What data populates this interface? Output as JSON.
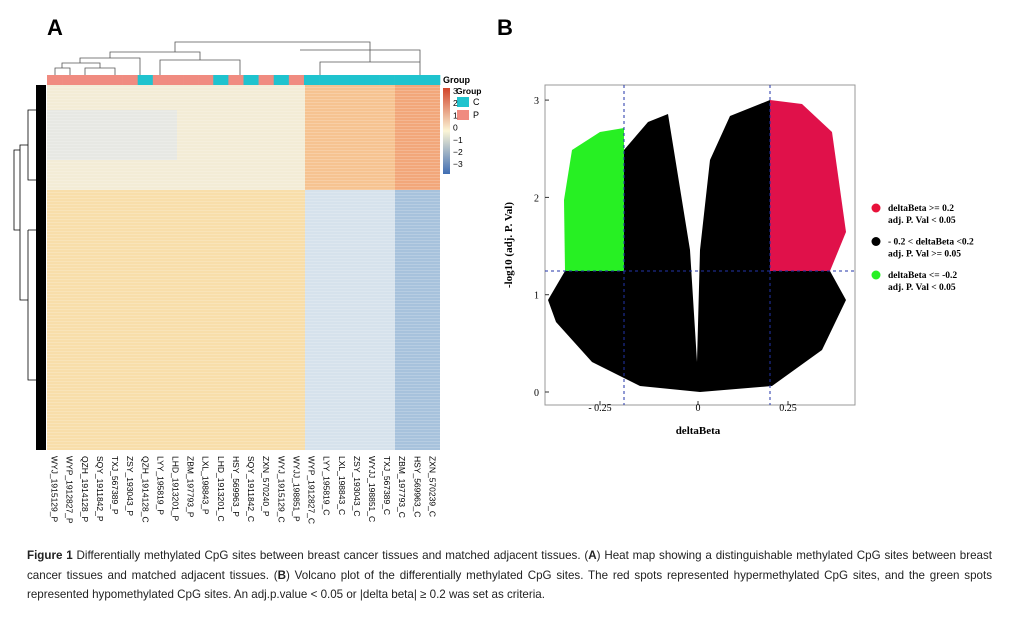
{
  "figure": {
    "panel_a": {
      "label": "A",
      "annotation_title": "Group",
      "legend_title": "Group",
      "groups": [
        {
          "name": "C",
          "color": "#1fc3ce"
        },
        {
          "name": "P",
          "color": "#f08b80"
        }
      ],
      "scale_ticks": [
        "3",
        "2",
        "1",
        "0",
        "−1",
        "−2",
        "−3"
      ],
      "columns": [
        {
          "name": "WYJ_1915129_P",
          "group": 1
        },
        {
          "name": "WYP_1912827_P",
          "group": 1
        },
        {
          "name": "QZH_1914128_P",
          "group": 1
        },
        {
          "name": "SQY_1911842_P",
          "group": 1
        },
        {
          "name": "TXJ_567389_P",
          "group": 1
        },
        {
          "name": "ZSY_193043_P",
          "group": 1
        },
        {
          "name": "QZH_1914128_C",
          "group": 0
        },
        {
          "name": "LYY_195819_P",
          "group": 1
        },
        {
          "name": "LHD_1913201_P",
          "group": 1
        },
        {
          "name": "ZBM_197793_P",
          "group": 1
        },
        {
          "name": "LXL_198843_P",
          "group": 1
        },
        {
          "name": "LHD_1913201_C",
          "group": 0
        },
        {
          "name": "HSY_569963_P",
          "group": 1
        },
        {
          "name": "SQY_1911842_C",
          "group": 0
        },
        {
          "name": "ZXN_570240_P",
          "group": 1
        },
        {
          "name": "WYJ_1915129_C",
          "group": 0
        },
        {
          "name": "WYJJ_198851_P",
          "group": 1
        },
        {
          "name": "WYP_1912827_C",
          "group": 0
        },
        {
          "name": "LYY_195819_C",
          "group": 0
        },
        {
          "name": "LXL_198843_C",
          "group": 0
        },
        {
          "name": "ZSY_193043_C",
          "group": 0
        },
        {
          "name": "WYJJ_198851_C",
          "group": 0
        },
        {
          "name": "TXJ_567389_C",
          "group": 0
        },
        {
          "name": "ZBM_197793_C",
          "group": 0
        },
        {
          "name": "HSY_569963_C",
          "group": 0
        },
        {
          "name": "ZXN_570239_C",
          "group": 0
        }
      ]
    },
    "panel_b": {
      "label": "B",
      "y_label": "-log10 (adj. P. Val)",
      "x_label": "deltaBeta",
      "x_ticks": [
        "- 0.25",
        "0",
        "0.25"
      ],
      "y_ticks": [
        "0",
        "1",
        "2",
        "3"
      ],
      "legend": [
        {
          "lines": [
            "deltaBeta >= 0.2",
            "adj. P. Val < 0.05"
          ],
          "color": "#e8113a"
        },
        {
          "lines": [
            "- 0.2 < deltaBeta <0.2",
            "adj. P. Val >= 0.05"
          ],
          "color": "#000000"
        },
        {
          "lines": [
            "deltaBeta <= -0.2",
            "adj. P. Val < 0.05"
          ],
          "color": "#27f023"
        }
      ]
    }
  },
  "caption": [
    {
      "text": "Figure 1",
      "bold": true
    },
    {
      "text": " Differentially methylated CpG sites between breast cancer tissues and matched adjacent tissues. (",
      "bold": false
    },
    {
      "text": "A",
      "bold": true
    },
    {
      "text": ") Heat map showing a distinguishable methylated CpG sites between breast cancer tissues and matched adjacent tissues. (",
      "bold": false
    },
    {
      "text": "B",
      "bold": true
    },
    {
      "text": ") Volcano plot of the differentially methylated CpG sites. The red spots represented hypermethylated CpG sites, and the green spots represented hypomethylated CpG sites. An adj.p.value < 0.05 or |delta beta| ≥ 0.2 was set as criteria.",
      "bold": false
    }
  ]
}
